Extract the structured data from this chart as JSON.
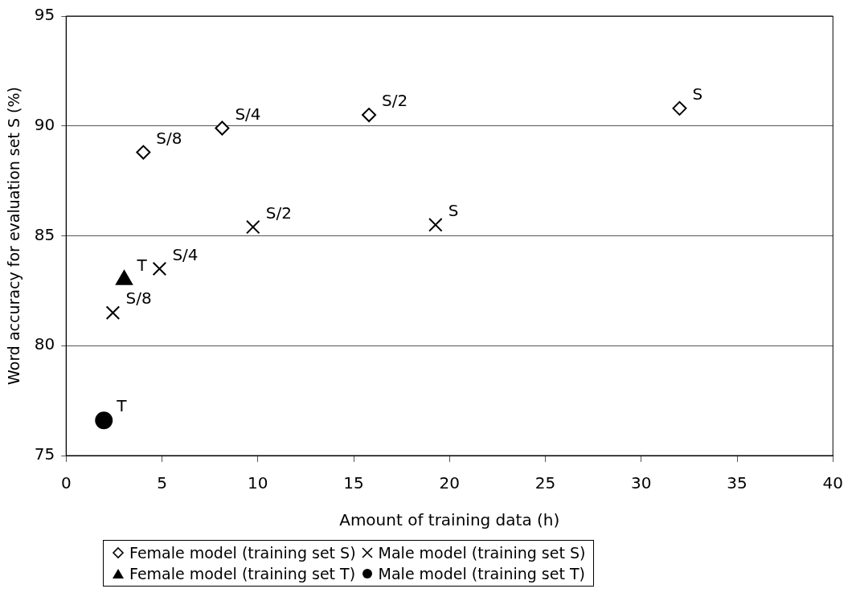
{
  "chart_data": {
    "type": "scatter",
    "xlabel": "Amount of training data (h)",
    "ylabel": "Word accuracy for evaluation set S (%)",
    "xlim": [
      0,
      40
    ],
    "xticks": [
      0,
      5,
      10,
      15,
      20,
      25,
      30,
      35,
      40
    ],
    "ylim": [
      75,
      95
    ],
    "yticks": [
      75,
      80,
      85,
      90,
      95
    ],
    "grid": "y",
    "legend": "bottom",
    "series": [
      {
        "name": "Female model (training set S)",
        "color": "#000000",
        "marker": "diamond",
        "x": [
          4.03,
          8.14,
          15.8,
          32.0
        ],
        "values": [
          88.8,
          89.9,
          90.5,
          90.8
        ]
      },
      {
        "name": "Male model (training set S)",
        "color": "#000000",
        "marker": "cross",
        "x": [
          2.44,
          4.87,
          9.75,
          19.27
        ],
        "values": [
          81.5,
          83.5,
          85.4,
          85.5
        ]
      },
      {
        "name": "Female model (training set T)",
        "color": "#000000",
        "marker": "triangle",
        "x": [
          3.03
        ],
        "values": [
          83.0
        ]
      },
      {
        "name": "Male model (training set T)",
        "color": "#000000",
        "marker": "circle",
        "x": [
          1.97
        ],
        "values": [
          76.6
        ]
      }
    ],
    "annotations": [
      {
        "text": "S/8",
        "x": 4.03,
        "y": 88.8
      },
      {
        "text": "S/4",
        "x": 8.14,
        "y": 89.9
      },
      {
        "text": "S/2",
        "x": 15.8,
        "y": 90.5
      },
      {
        "text": "S",
        "x": 32.0,
        "y": 90.8
      },
      {
        "text": "S/8",
        "x": 2.44,
        "y": 81.5
      },
      {
        "text": "S/4",
        "x": 4.87,
        "y": 83.5
      },
      {
        "text": "S/2",
        "x": 9.75,
        "y": 85.4
      },
      {
        "text": "S",
        "x": 19.27,
        "y": 85.5
      },
      {
        "text": "T",
        "x": 3.03,
        "y": 83.0
      },
      {
        "text": "T",
        "x": 1.97,
        "y": 76.6
      }
    ]
  }
}
